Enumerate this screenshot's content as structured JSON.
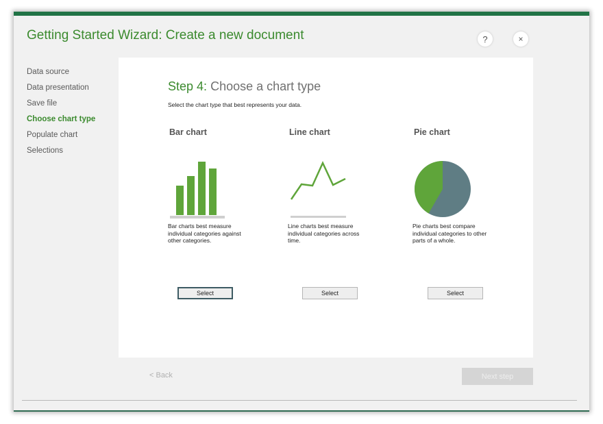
{
  "window": {
    "title": "Getting Started Wizard: Create a new document",
    "help_label": "?",
    "close_label": "×"
  },
  "steps": [
    {
      "label": "Data source",
      "active": false
    },
    {
      "label": "Data presentation",
      "active": false
    },
    {
      "label": "Save file",
      "active": false
    },
    {
      "label": "Choose chart type",
      "active": true
    },
    {
      "label": "Populate chart",
      "active": false
    },
    {
      "label": "Selections",
      "active": false
    }
  ],
  "main": {
    "step_number": "Step 4",
    "step_separator": ":",
    "step_title": " Choose a chart type",
    "instruction": "Select the chart type that best represents your data.",
    "options": [
      {
        "title": "Bar chart",
        "description": "Bar charts best measure individual categories against other categories.",
        "button": "Select",
        "icon": "bar-chart-icon"
      },
      {
        "title": "Line chart",
        "description": "Line charts best measure individual categories across time.",
        "button": "Select",
        "icon": "line-chart-icon"
      },
      {
        "title": "Pie chart",
        "description": "Pie charts best compare individual categories to other parts of a whole.",
        "button": "Select",
        "icon": "pie-chart-icon"
      }
    ]
  },
  "footer": {
    "back_label": "< Back",
    "next_label": "Next step"
  },
  "colors": {
    "accent": "#217346",
    "title_green": "#3b8a2e",
    "chart_green": "#5fa53a",
    "pie_slate": "#5f7d84",
    "dialog_bg": "#f1f1f1",
    "panel_bg": "#ffffff",
    "disabled": "#d5d5d5"
  }
}
